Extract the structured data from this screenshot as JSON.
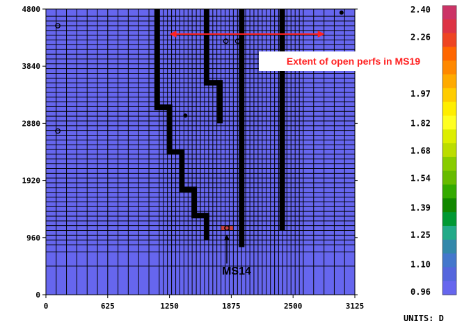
{
  "chart_data": {
    "type": "heatmap",
    "title": "",
    "xlabel": "",
    "ylabel": "",
    "x_ticks": [
      "0",
      "625",
      "1250",
      "1875",
      "2500",
      "3125"
    ],
    "y_ticks": [
      "0",
      "960",
      "1920",
      "2880",
      "3840",
      "4800"
    ],
    "xlim": [
      0,
      3125
    ],
    "ylim": [
      0,
      4800
    ],
    "grid": true,
    "background_color": "#6666ee",
    "grid_color": "#000000",
    "x_grid_lines": [
      104,
      208,
      313,
      417,
      521,
      625,
      729,
      833,
      938,
      1042,
      1146,
      1188,
      1229,
      1271,
      1313,
      1354,
      1396,
      1438,
      1479,
      1521,
      1563,
      1604,
      1646,
      1688,
      1729,
      1771,
      1813,
      1854,
      1896,
      1938,
      1979,
      2021,
      2063,
      2104,
      2146,
      2188,
      2229,
      2271,
      2313,
      2354,
      2396,
      2438,
      2479,
      2521,
      2563,
      2604,
      2708,
      2813,
      2917,
      3021
    ],
    "y_grid_lines": [
      480,
      720,
      840,
      920,
      1000,
      1080,
      1160,
      1240,
      1320,
      1400,
      1480,
      1560,
      1640,
      1720,
      1800,
      1880,
      1960,
      2040,
      2120,
      2200,
      2280,
      2360,
      2440,
      2520,
      2600,
      2680,
      2760,
      2840,
      2920,
      3000,
      3080,
      3160,
      3240,
      3320,
      3400,
      3480,
      3560,
      3640,
      3720,
      3800,
      3880,
      3960,
      4040,
      4120,
      4200,
      4280,
      4360,
      4440,
      4520,
      4600,
      4680
    ],
    "wells": [
      {
        "label": "",
        "x": 120,
        "y": 4520,
        "style": "open-circle"
      },
      {
        "label": "",
        "x": 120,
        "y": 2750,
        "style": "open-circle"
      },
      {
        "label": "",
        "x": 1410,
        "y": 3010,
        "style": "dot"
      },
      {
        "label": "",
        "x": 1820,
        "y": 4260,
        "style": "open-circle"
      },
      {
        "label": "",
        "x": 1940,
        "y": 4260,
        "style": "open-circle"
      },
      {
        "label": "",
        "x": 2990,
        "y": 4740,
        "style": "dot"
      },
      {
        "label": "MS14",
        "x": 1830,
        "y": 1120,
        "style": "open-circle"
      }
    ],
    "highlighted_cell": {
      "x": [
        1771,
        1896
      ],
      "y": [
        1080,
        1160
      ],
      "color": "#cc4444"
    },
    "barriers": [
      {
        "name": "",
        "points": [
          [
            1125,
            4800
          ],
          [
            1125,
            3150
          ],
          [
            1250,
            3150
          ],
          [
            1250,
            2400
          ],
          [
            1375,
            2400
          ],
          [
            1375,
            1770
          ],
          [
            1500,
            1770
          ],
          [
            1500,
            1330
          ],
          [
            1625,
            1330
          ],
          [
            1625,
            920
          ]
        ]
      },
      {
        "name": "",
        "points": [
          [
            1625,
            4800
          ],
          [
            1625,
            3560
          ],
          [
            1760,
            3560
          ],
          [
            1760,
            2880
          ]
        ]
      },
      {
        "name": "",
        "points": [
          [
            1980,
            4800
          ],
          [
            1980,
            800
          ]
        ]
      },
      {
        "name": "",
        "points": [
          [
            2390,
            4800
          ],
          [
            2390,
            1080
          ]
        ]
      }
    ],
    "annotations": [
      {
        "name": "extent-arrow",
        "text": "Extent of open perfs in MS19",
        "x_from": 1250,
        "x_to": 2820,
        "y": 4380,
        "color": "#ff2222"
      },
      {
        "name": "ms14-arrow",
        "text": "MS14",
        "x": 1830,
        "y_from": 430,
        "y_to": 1010,
        "color": "#000000"
      }
    ],
    "colorbar": {
      "labels": [
        "2.40",
        "2.26",
        "1.97",
        "1.82",
        "1.68",
        "1.54",
        "1.39",
        "1.25",
        "1.10",
        "0.96"
      ],
      "units": "UNITS: D",
      "min": 0.96,
      "max": 2.4,
      "colors": [
        "#cc3366",
        "#dd3344",
        "#ee4422",
        "#ff6600",
        "#ff8800",
        "#ffaa00",
        "#ffcc00",
        "#ffee00",
        "#ffff22",
        "#ddee00",
        "#bbdd00",
        "#88cc00",
        "#66bb00",
        "#33aa00",
        "#118800",
        "#009933",
        "#22aa88",
        "#3388aa",
        "#4477cc",
        "#5566dd",
        "#6666ee"
      ]
    }
  }
}
